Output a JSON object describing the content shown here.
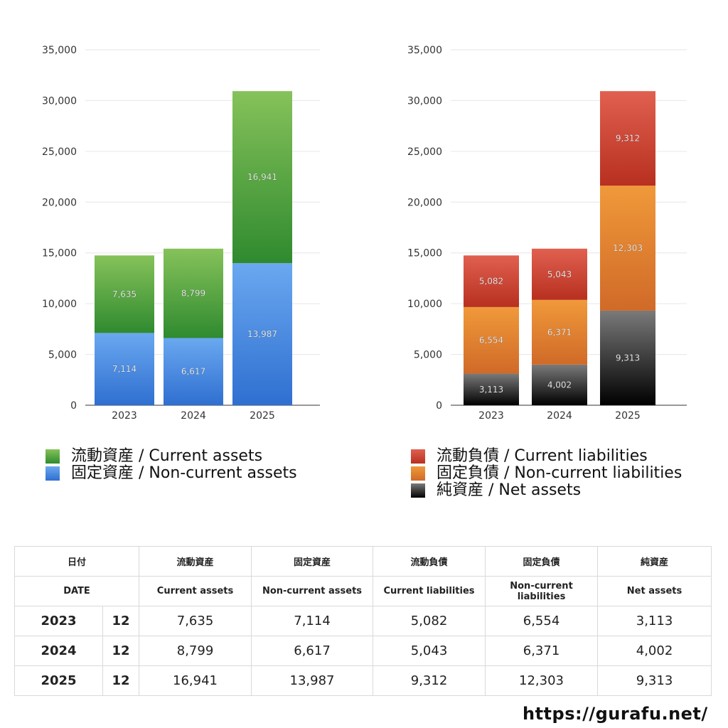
{
  "chart_data": [
    {
      "type": "bar",
      "stacked": true,
      "categories": [
        "2023",
        "2024",
        "2025"
      ],
      "series": [
        {
          "name": "固定資産 / Non-current assets",
          "values": [
            7114,
            6617,
            13987
          ],
          "color_top": "#6aa8f0",
          "color_bottom": "#2f6fd0"
        },
        {
          "name": "流動資産 / Current assets",
          "values": [
            7635,
            8799,
            16941
          ],
          "color_top": "#86c25a",
          "color_bottom": "#2f8a2f"
        }
      ],
      "data_labels": {
        "Non-current assets": [
          "7,114",
          "6,617",
          "13,987"
        ],
        "Current assets": [
          "7,635",
          "8,799",
          "16,941"
        ]
      },
      "ylim": [
        0,
        35000
      ],
      "yticks": [
        0,
        5000,
        10000,
        15000,
        20000,
        25000,
        30000,
        35000
      ],
      "ytick_labels": [
        "0",
        "5,000",
        "10,000",
        "15,000",
        "20,000",
        "25,000",
        "30,000",
        "35,000"
      ],
      "grid": true,
      "legend": "bottom"
    },
    {
      "type": "bar",
      "stacked": true,
      "categories": [
        "2023",
        "2024",
        "2025"
      ],
      "series": [
        {
          "name": "純資産 / Net assets",
          "values": [
            3113,
            4002,
            9313
          ],
          "color_top": "#7a7a7a",
          "color_bottom": "#000000"
        },
        {
          "name": "固定負債 / Non-current liabilities",
          "values": [
            6554,
            6371,
            12303
          ],
          "color_top": "#f0993a",
          "color_bottom": "#d06a28"
        },
        {
          "name": "流動負債 / Current liabilities",
          "values": [
            5082,
            5043,
            9312
          ],
          "color_top": "#e06050",
          "color_bottom": "#b8301f"
        }
      ],
      "data_labels": {
        "Net assets": [
          "3,113",
          "4,002",
          "9,313"
        ],
        "Non-current liabilities": [
          "6,554",
          "6,371",
          "12,303"
        ],
        "Current liabilities": [
          "5,082",
          "5,043",
          "9,312"
        ]
      },
      "ylim": [
        0,
        35000
      ],
      "yticks": [
        0,
        5000,
        10000,
        15000,
        20000,
        25000,
        30000,
        35000
      ],
      "ytick_labels": [
        "0",
        "5,000",
        "10,000",
        "15,000",
        "20,000",
        "25,000",
        "30,000",
        "35,000"
      ],
      "grid": true,
      "legend": "bottom"
    }
  ],
  "legend_left": [
    {
      "label": "流動資産 / Current assets",
      "color": "#4aa84a"
    },
    {
      "label": "固定資産 / Non-current assets",
      "color": "#4a8ee8"
    }
  ],
  "legend_right": [
    {
      "label": "流動負債 / Current liabilities",
      "color": "#d8473a"
    },
    {
      "label": "固定負債 / Non-current liabilities",
      "color": "#e8883a"
    },
    {
      "label": "純資産 / Net assets",
      "color": "#333333"
    }
  ],
  "table": {
    "header_jp": {
      "date": "日付",
      "c1": "流動資産",
      "c2": "固定資産",
      "c3": "流動負債",
      "c4": "固定負債",
      "c5": "純資産"
    },
    "header_en": {
      "date": "DATE",
      "c1": "Current assets",
      "c2": "Non-current assets",
      "c3": "Current liabilities",
      "c4": "Non-current liabilities",
      "c5": "Net assets"
    },
    "rows": [
      {
        "year": "2023",
        "month": "12",
        "c1": "7,635",
        "c2": "7,114",
        "c3": "5,082",
        "c4": "6,554",
        "c5": "3,113"
      },
      {
        "year": "2024",
        "month": "12",
        "c1": "8,799",
        "c2": "6,617",
        "c3": "5,043",
        "c4": "6,371",
        "c5": "4,002"
      },
      {
        "year": "2025",
        "month": "12",
        "c1": "16,941",
        "c2": "13,987",
        "c3": "9,312",
        "c4": "12,303",
        "c5": "9,313"
      }
    ]
  },
  "footer_url": "https://gurafu.net/"
}
